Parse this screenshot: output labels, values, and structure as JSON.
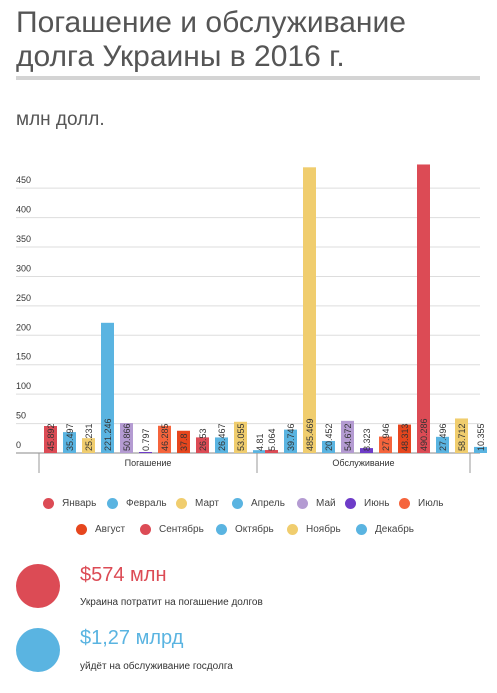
{
  "header": {
    "title": "Погашение и обслуживание долга Украины в 2016 г.",
    "unit": "млн долл."
  },
  "chart_data": {
    "type": "bar",
    "categories": [
      "Погашение",
      "Обслуживание"
    ],
    "y_ticks": [
      "0",
      "50",
      "100",
      "150",
      "200",
      "250",
      "300",
      "350",
      "400",
      "450"
    ],
    "ylim": [
      0,
      480
    ],
    "grid": true,
    "legend_position": "bottom",
    "series": [
      {
        "name": "Январь",
        "color": "#dc4b55",
        "values": [
          45.892,
          5.064
        ]
      },
      {
        "name": "Февраль",
        "color": "#5ab4e1",
        "values": [
          35.497,
          39.746
        ]
      },
      {
        "name": "Март",
        "color": "#f0cd6e",
        "values": [
          25.231,
          485.469
        ]
      },
      {
        "name": "Апрель",
        "color": "#5ab4e1",
        "values": [
          221.246,
          20.452
        ]
      },
      {
        "name": "Май",
        "color": "#b49bd2",
        "values": [
          50.866,
          54.672
        ]
      },
      {
        "name": "Июнь",
        "color": "#6e3cc8",
        "values": [
          0.797,
          8.323
        ]
      },
      {
        "name": "Июль",
        "color": "#f5643c",
        "values": [
          46.285,
          27.946
        ]
      },
      {
        "name": "Август",
        "color": "#e6461e",
        "values": [
          37.8,
          48.313
        ]
      },
      {
        "name": "Сентябрь",
        "color": "#dc4b55",
        "values": [
          26.53,
          490.286
        ]
      },
      {
        "name": "Октябрь",
        "color": "#5ab4e1",
        "values": [
          26.467,
          27.496
        ]
      },
      {
        "name": "Ноябрь",
        "color": "#f0cd6e",
        "values": [
          53.055,
          58.712
        ]
      },
      {
        "name": "Декабрь",
        "color": "#5ab4e1",
        "values": [
          4.81,
          10.355
        ]
      }
    ],
    "data_labels": [
      [
        "45.892",
        "35.497",
        "25.231",
        "221.246",
        "50.866",
        "0.797",
        "46.285",
        "37.8",
        "26.53",
        "26.467",
        "53.055",
        "4.81"
      ],
      [
        "5.064",
        "39.746",
        "485.469",
        "20.452",
        "54.672",
        "8.323",
        "27.946",
        "48.313",
        "490.286",
        "27.496",
        "58.712",
        "10.355"
      ]
    ]
  },
  "summary": [
    {
      "value": "$574 млн",
      "description": "Украина потратит на погашение долгов",
      "color": "#dc4b55"
    },
    {
      "value": "$1,27 млрд",
      "description": "уйдёт на обслуживание госдолга",
      "color": "#5ab4e1"
    }
  ]
}
